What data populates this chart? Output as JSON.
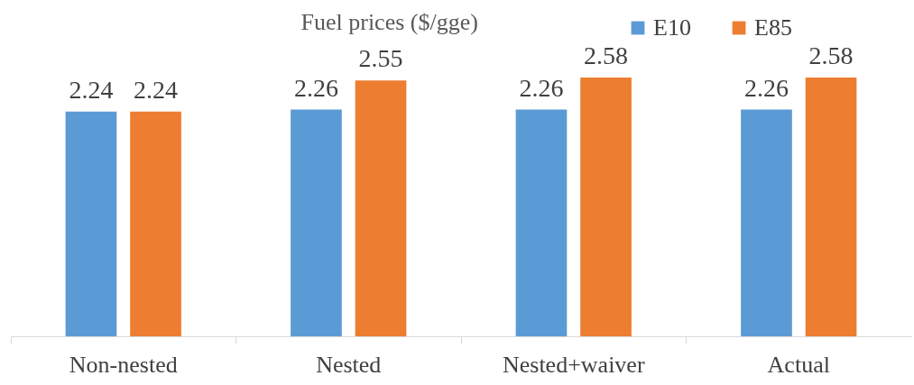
{
  "chart_data": {
    "type": "bar",
    "title": "Fuel prices ($/gge)",
    "categories": [
      "Non-nested",
      "Nested",
      "Nested+waiver",
      "Actual"
    ],
    "series": [
      {
        "name": "E10",
        "color": "#5b9bd5",
        "values": [
          2.24,
          2.26,
          2.26,
          2.26
        ]
      },
      {
        "name": "E85",
        "color": "#ed7d31",
        "values": [
          2.24,
          2.55,
          2.58,
          2.58
        ]
      }
    ],
    "data_labels": true,
    "legend": "top right",
    "grid": false
  }
}
